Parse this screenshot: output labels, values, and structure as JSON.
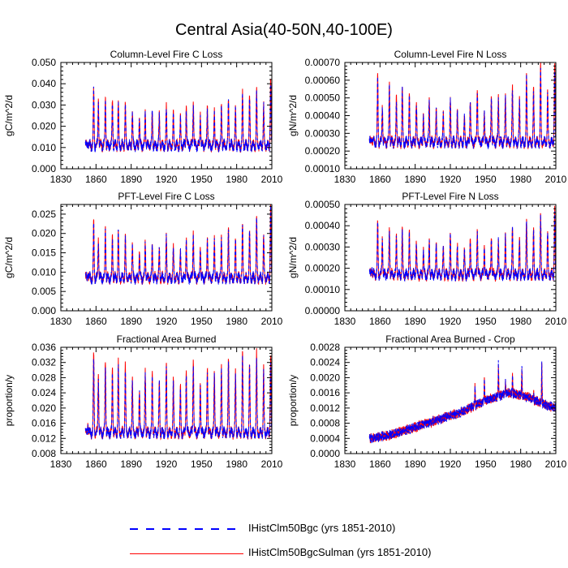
{
  "title": "Central Asia(40-50N,40-100E)",
  "legend": [
    {
      "label": "IHistClm50Bgc (yrs 1851-2010)",
      "color": "#0000ff",
      "style": "dashed"
    },
    {
      "label": "IHistClm50BgcSulman (yrs 1851-2010)",
      "color": "#ff0000",
      "style": "solid"
    }
  ],
  "chart_data": [
    {
      "type": "line",
      "title": "Column-Level Fire C Loss",
      "ylabel": "gC/m^2/d",
      "xlim": [
        1830,
        2010
      ],
      "ylim": [
        0.0,
        0.05
      ],
      "xticks": [
        "1830",
        "1860",
        "1890",
        "1920",
        "1950",
        "1980",
        "2010"
      ],
      "yticks": [
        "0.000",
        "0.010",
        "0.020",
        "0.030",
        "0.040",
        "0.050"
      ],
      "x_range": [
        1851,
        2010
      ],
      "baseline": 0.011,
      "peaks": [
        [
          1853,
          0.013
        ],
        [
          1858,
          0.037
        ],
        [
          1862,
          0.033
        ],
        [
          1868,
          0.034
        ],
        [
          1874,
          0.032
        ],
        [
          1879,
          0.031
        ],
        [
          1885,
          0.03
        ],
        [
          1891,
          0.027
        ],
        [
          1897,
          0.024
        ],
        [
          1902,
          0.028
        ],
        [
          1908,
          0.027
        ],
        [
          1914,
          0.025
        ],
        [
          1920,
          0.029
        ],
        [
          1926,
          0.026
        ],
        [
          1932,
          0.023
        ],
        [
          1937,
          0.03
        ],
        [
          1943,
          0.032
        ],
        [
          1949,
          0.027
        ],
        [
          1955,
          0.03
        ],
        [
          1961,
          0.028
        ],
        [
          1967,
          0.03
        ],
        [
          1973,
          0.032
        ],
        [
          1979,
          0.028
        ],
        [
          1985,
          0.035
        ],
        [
          1991,
          0.033
        ],
        [
          1997,
          0.036
        ],
        [
          2003,
          0.03
        ],
        [
          2009,
          0.041
        ]
      ],
      "series": [
        {
          "name": "IHistClm50Bgc (yrs 1851-2010)",
          "color": "#0000ff",
          "peak_scale": 0.95
        },
        {
          "name": "IHistClm50BgcSulman (yrs 1851-2010)",
          "color": "#ff0000",
          "peak_scale": 1.0
        }
      ]
    },
    {
      "type": "line",
      "title": "Column-Level Fire N Loss",
      "ylabel": "gN/m^2/d",
      "xlim": [
        1830,
        2010
      ],
      "ylim": [
        0.0001,
        0.0007
      ],
      "xticks": [
        "1830",
        "1860",
        "1890",
        "1920",
        "1950",
        "1980",
        "2010"
      ],
      "yticks": [
        "0.00010",
        "0.00020",
        "0.00030",
        "0.00040",
        "0.00050",
        "0.00060",
        "0.00070"
      ],
      "x_range": [
        1851,
        2010
      ],
      "baseline": 0.00025,
      "peaks": [
        [
          1853,
          0.00028
        ],
        [
          1858,
          0.00061
        ],
        [
          1862,
          0.00046
        ],
        [
          1868,
          0.00059
        ],
        [
          1874,
          0.0005
        ],
        [
          1879,
          0.00055
        ],
        [
          1885,
          0.00051
        ],
        [
          1891,
          0.00047
        ],
        [
          1897,
          0.00041
        ],
        [
          1902,
          0.00049
        ],
        [
          1908,
          0.00044
        ],
        [
          1914,
          0.00041
        ],
        [
          1920,
          0.00048
        ],
        [
          1926,
          0.00041
        ],
        [
          1932,
          0.00038
        ],
        [
          1937,
          0.0005
        ],
        [
          1943,
          0.00057
        ],
        [
          1949,
          0.00044
        ],
        [
          1955,
          0.00052
        ],
        [
          1961,
          0.00051
        ],
        [
          1967,
          0.00052
        ],
        [
          1973,
          0.00055
        ],
        [
          1979,
          0.00048
        ],
        [
          1985,
          0.00062
        ],
        [
          1991,
          0.00053
        ],
        [
          1997,
          0.00067
        ],
        [
          2003,
          0.00052
        ],
        [
          2009,
          0.00068
        ]
      ],
      "series": [
        {
          "name": "IHistClm50Bgc (yrs 1851-2010)",
          "color": "#0000ff",
          "peak_scale": 0.95
        },
        {
          "name": "IHistClm50BgcSulman (yrs 1851-2010)",
          "color": "#ff0000",
          "peak_scale": 1.0
        }
      ]
    },
    {
      "type": "line",
      "title": "PFT-Level Fire C Loss",
      "ylabel": "gC/m^2/d",
      "xlim": [
        1830,
        2010
      ],
      "ylim": [
        0.0,
        0.0275
      ],
      "xticks": [
        "1830",
        "1860",
        "1890",
        "1920",
        "1950",
        "1980",
        "2010"
      ],
      "yticks": [
        "0.000",
        "0.005",
        "0.010",
        "0.015",
        "0.020",
        "0.025"
      ],
      "x_range": [
        1851,
        2010
      ],
      "baseline": 0.0085,
      "peaks": [
        [
          1853,
          0.01
        ],
        [
          1858,
          0.0225
        ],
        [
          1862,
          0.019
        ],
        [
          1868,
          0.0215
        ],
        [
          1874,
          0.019
        ],
        [
          1879,
          0.0205
        ],
        [
          1885,
          0.019
        ],
        [
          1891,
          0.017
        ],
        [
          1897,
          0.015
        ],
        [
          1902,
          0.018
        ],
        [
          1908,
          0.017
        ],
        [
          1914,
          0.016
        ],
        [
          1920,
          0.019
        ],
        [
          1926,
          0.016
        ],
        [
          1932,
          0.015
        ],
        [
          1937,
          0.019
        ],
        [
          1943,
          0.021
        ],
        [
          1949,
          0.017
        ],
        [
          1955,
          0.019
        ],
        [
          1961,
          0.019
        ],
        [
          1967,
          0.019
        ],
        [
          1973,
          0.021
        ],
        [
          1979,
          0.018
        ],
        [
          1985,
          0.022
        ],
        [
          1991,
          0.02
        ],
        [
          1997,
          0.024
        ],
        [
          2003,
          0.019
        ],
        [
          2009,
          0.027
        ]
      ],
      "series": [
        {
          "name": "IHistClm50Bgc (yrs 1851-2010)",
          "color": "#0000ff",
          "peak_scale": 0.95
        },
        {
          "name": "IHistClm50BgcSulman (yrs 1851-2010)",
          "color": "#ff0000",
          "peak_scale": 1.0
        }
      ]
    },
    {
      "type": "line",
      "title": "PFT-Level Fire N Loss",
      "ylabel": "gN/m^2/d",
      "xlim": [
        1830,
        2010
      ],
      "ylim": [
        0.0,
        0.0005
      ],
      "xticks": [
        "1830",
        "1860",
        "1890",
        "1920",
        "1950",
        "1980",
        "2010"
      ],
      "yticks": [
        "0.00000",
        "0.00010",
        "0.00020",
        "0.00030",
        "0.00040",
        "0.00050"
      ],
      "x_range": [
        1851,
        2010
      ],
      "baseline": 0.00017,
      "peaks": [
        [
          1853,
          0.00021
        ],
        [
          1858,
          0.00041
        ],
        [
          1862,
          0.00035
        ],
        [
          1868,
          0.0004
        ],
        [
          1874,
          0.00035
        ],
        [
          1879,
          0.00038
        ],
        [
          1885,
          0.00036
        ],
        [
          1891,
          0.00032
        ],
        [
          1897,
          0.00029
        ],
        [
          1902,
          0.00034
        ],
        [
          1908,
          0.00031
        ],
        [
          1914,
          0.0003
        ],
        [
          1920,
          0.00035
        ],
        [
          1926,
          0.0003
        ],
        [
          1932,
          0.00028
        ],
        [
          1937,
          0.00035
        ],
        [
          1943,
          0.00039
        ],
        [
          1949,
          0.00031
        ],
        [
          1955,
          0.00036
        ],
        [
          1961,
          0.00035
        ],
        [
          1967,
          0.00036
        ],
        [
          1973,
          0.00039
        ],
        [
          1979,
          0.00033
        ],
        [
          1985,
          0.00041
        ],
        [
          1991,
          0.00037
        ],
        [
          1997,
          0.00044
        ],
        [
          2003,
          0.00036
        ],
        [
          2009,
          0.00047
        ]
      ],
      "series": [
        {
          "name": "IHistClm50Bgc (yrs 1851-2010)",
          "color": "#0000ff",
          "peak_scale": 0.95
        },
        {
          "name": "IHistClm50BgcSulman (yrs 1851-2010)",
          "color": "#ff0000",
          "peak_scale": 1.0
        }
      ]
    },
    {
      "type": "line",
      "title": "Fractional Area Burned",
      "ylabel": "proportion/y",
      "xlim": [
        1830,
        2010
      ],
      "ylim": [
        0.008,
        0.036
      ],
      "xticks": [
        "1830",
        "1860",
        "1890",
        "1920",
        "1950",
        "1980",
        "2010"
      ],
      "yticks": [
        "0.008",
        "0.012",
        "0.016",
        "0.020",
        "0.024",
        "0.028",
        "0.032",
        "0.036"
      ],
      "x_range": [
        1851,
        2010
      ],
      "baseline": 0.0135,
      "peaks": [
        [
          1853,
          0.016
        ],
        [
          1858,
          0.034
        ],
        [
          1862,
          0.029
        ],
        [
          1868,
          0.033
        ],
        [
          1874,
          0.03
        ],
        [
          1879,
          0.032
        ],
        [
          1885,
          0.031
        ],
        [
          1891,
          0.028
        ],
        [
          1897,
          0.025
        ],
        [
          1902,
          0.03
        ],
        [
          1908,
          0.029
        ],
        [
          1914,
          0.027
        ],
        [
          1920,
          0.031
        ],
        [
          1926,
          0.027
        ],
        [
          1932,
          0.025
        ],
        [
          1937,
          0.03
        ],
        [
          1943,
          0.033
        ],
        [
          1949,
          0.027
        ],
        [
          1955,
          0.031
        ],
        [
          1961,
          0.03
        ],
        [
          1967,
          0.031
        ],
        [
          1973,
          0.033
        ],
        [
          1979,
          0.029
        ],
        [
          1985,
          0.034
        ],
        [
          1991,
          0.031
        ],
        [
          1997,
          0.034
        ],
        [
          2003,
          0.03
        ],
        [
          2009,
          0.033
        ]
      ],
      "series": [
        {
          "name": "IHistClm50Bgc (yrs 1851-2010)",
          "color": "#0000ff",
          "peak_scale": 0.93
        },
        {
          "name": "IHistClm50BgcSulman (yrs 1851-2010)",
          "color": "#ff0000",
          "peak_scale": 1.0
        }
      ]
    },
    {
      "type": "line",
      "title": "Fractional Area Burned - Crop",
      "ylabel": "proportion/y",
      "xlim": [
        1830,
        2010
      ],
      "ylim": [
        0.0,
        0.0028
      ],
      "xticks": [
        "1830",
        "1860",
        "1890",
        "1920",
        "1950",
        "1980",
        "2010"
      ],
      "yticks": [
        "0.0000",
        "0.0004",
        "0.0008",
        "0.0012",
        "0.0016",
        "0.0020",
        "0.0024",
        "0.0028"
      ],
      "x_range": [
        1851,
        2010
      ],
      "trend": [
        [
          1851,
          0.0004
        ],
        [
          1870,
          0.0005
        ],
        [
          1890,
          0.0007
        ],
        [
          1910,
          0.0009
        ],
        [
          1930,
          0.0011
        ],
        [
          1950,
          0.0014
        ],
        [
          1970,
          0.0016
        ],
        [
          1985,
          0.0015
        ],
        [
          2000,
          0.0013
        ],
        [
          2010,
          0.0012
        ]
      ],
      "spikes": [
        [
          1941,
          0.0018
        ],
        [
          1949,
          0.002
        ],
        [
          1961,
          0.0024
        ],
        [
          1967,
          0.0019
        ],
        [
          1973,
          0.0021
        ],
        [
          1981,
          0.0023
        ],
        [
          1991,
          0.0016
        ],
        [
          1998,
          0.0024
        ]
      ],
      "series": [
        {
          "name": "IHistClm50Bgc (yrs 1851-2010)",
          "color": "#0000ff",
          "peak_scale": 1.0
        },
        {
          "name": "IHistClm50BgcSulman (yrs 1851-2010)",
          "color": "#ff0000",
          "peak_scale": 1.0
        }
      ]
    }
  ]
}
